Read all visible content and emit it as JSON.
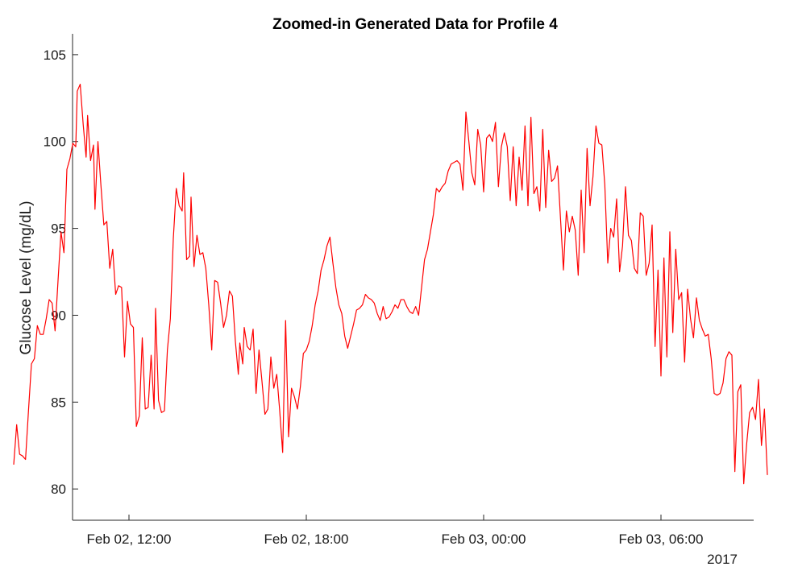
{
  "chart_data": {
    "type": "line",
    "title": "Zoomed-in Generated Data for Profile 4",
    "xlabel": "",
    "ylabel": "Glucose Level (mg/dL)",
    "x_axis": {
      "start_hour": 8.1,
      "end_hour": 31.1,
      "ticks": [
        {
          "hour": 12,
          "label": "Feb 02, 12:00"
        },
        {
          "hour": 18,
          "label": "Feb 02, 18:00"
        },
        {
          "hour": 24,
          "label": "Feb 03, 00:00"
        },
        {
          "hour": 30,
          "label": "Feb 03, 06:00"
        }
      ],
      "secondary_label": "2017"
    },
    "ylim": [
      78.2,
      106.2
    ],
    "y_ticks": [
      80,
      85,
      90,
      95,
      100,
      105
    ],
    "grid": false,
    "legend": "none",
    "line_color": "#ff0000",
    "series": [
      {
        "values": [
          [
            8.1,
            81.4
          ],
          [
            8.2,
            83.7
          ],
          [
            8.3,
            82.0
          ],
          [
            8.4,
            81.9
          ],
          [
            8.5,
            81.7
          ],
          [
            8.6,
            84.5
          ],
          [
            8.7,
            87.2
          ],
          [
            8.8,
            87.5
          ],
          [
            8.9,
            89.4
          ],
          [
            9.0,
            88.9
          ],
          [
            9.1,
            88.9
          ],
          [
            9.2,
            89.8
          ],
          [
            9.3,
            90.9
          ],
          [
            9.4,
            90.7
          ],
          [
            9.5,
            89.1
          ],
          [
            9.6,
            92.0
          ],
          [
            9.7,
            94.8
          ],
          [
            9.8,
            93.6
          ],
          [
            9.9,
            98.4
          ],
          [
            10.0,
            99.0
          ],
          [
            10.1,
            99.9
          ],
          [
            10.2,
            99.7
          ],
          [
            10.25,
            102.9
          ],
          [
            10.35,
            103.3
          ],
          [
            10.45,
            101.0
          ],
          [
            10.55,
            99.1
          ],
          [
            10.6,
            101.5
          ],
          [
            10.7,
            98.9
          ],
          [
            10.8,
            99.8
          ],
          [
            10.85,
            96.1
          ],
          [
            10.95,
            100.0
          ],
          [
            11.05,
            97.5
          ],
          [
            11.15,
            95.2
          ],
          [
            11.25,
            95.4
          ],
          [
            11.35,
            92.7
          ],
          [
            11.45,
            93.8
          ],
          [
            11.55,
            91.2
          ],
          [
            11.65,
            91.7
          ],
          [
            11.75,
            91.6
          ],
          [
            11.85,
            87.6
          ],
          [
            11.95,
            90.8
          ],
          [
            12.05,
            89.5
          ],
          [
            12.15,
            89.3
          ],
          [
            12.25,
            83.6
          ],
          [
            12.35,
            84.2
          ],
          [
            12.45,
            88.7
          ],
          [
            12.55,
            84.6
          ],
          [
            12.65,
            84.7
          ],
          [
            12.75,
            87.7
          ],
          [
            12.85,
            84.6
          ],
          [
            12.9,
            90.4
          ],
          [
            13.0,
            85.1
          ],
          [
            13.1,
            84.4
          ],
          [
            13.2,
            84.5
          ],
          [
            13.3,
            88.0
          ],
          [
            13.4,
            89.8
          ],
          [
            13.5,
            94.4
          ],
          [
            13.6,
            97.3
          ],
          [
            13.7,
            96.3
          ],
          [
            13.8,
            96.0
          ],
          [
            13.85,
            98.2
          ],
          [
            13.95,
            93.2
          ],
          [
            14.05,
            93.4
          ],
          [
            14.1,
            96.8
          ],
          [
            14.2,
            92.8
          ],
          [
            14.3,
            94.6
          ],
          [
            14.4,
            93.5
          ],
          [
            14.5,
            93.6
          ],
          [
            14.6,
            92.7
          ],
          [
            14.7,
            90.6
          ],
          [
            14.8,
            88.0
          ],
          [
            14.9,
            92.0
          ],
          [
            15.0,
            91.9
          ],
          [
            15.1,
            90.7
          ],
          [
            15.2,
            89.3
          ],
          [
            15.3,
            90.0
          ],
          [
            15.4,
            91.4
          ],
          [
            15.5,
            91.1
          ],
          [
            15.6,
            88.5
          ],
          [
            15.7,
            86.6
          ],
          [
            15.75,
            88.4
          ],
          [
            15.85,
            87.2
          ],
          [
            15.9,
            89.3
          ],
          [
            16.0,
            88.2
          ],
          [
            16.1,
            88.0
          ],
          [
            16.2,
            89.2
          ],
          [
            16.3,
            85.5
          ],
          [
            16.4,
            88.0
          ],
          [
            16.5,
            86.2
          ],
          [
            16.6,
            84.3
          ],
          [
            16.7,
            84.6
          ],
          [
            16.8,
            87.6
          ],
          [
            16.9,
            85.8
          ],
          [
            17.0,
            86.6
          ],
          [
            17.1,
            84.5
          ],
          [
            17.2,
            82.1
          ],
          [
            17.3,
            89.7
          ],
          [
            17.4,
            83.0
          ],
          [
            17.5,
            85.8
          ],
          [
            17.6,
            85.3
          ],
          [
            17.7,
            84.6
          ],
          [
            17.8,
            85.9
          ],
          [
            17.9,
            87.8
          ],
          [
            18.0,
            88.0
          ],
          [
            18.1,
            88.5
          ],
          [
            18.2,
            89.4
          ],
          [
            18.3,
            90.6
          ],
          [
            18.4,
            91.4
          ],
          [
            18.5,
            92.6
          ],
          [
            18.6,
            93.2
          ],
          [
            18.7,
            94.0
          ],
          [
            18.8,
            94.5
          ],
          [
            18.9,
            93.0
          ],
          [
            19.0,
            91.6
          ],
          [
            19.1,
            90.6
          ],
          [
            19.2,
            90.1
          ],
          [
            19.3,
            88.8
          ],
          [
            19.4,
            88.1
          ],
          [
            19.5,
            88.8
          ],
          [
            19.6,
            89.5
          ],
          [
            19.7,
            90.3
          ],
          [
            19.8,
            90.4
          ],
          [
            19.9,
            90.6
          ],
          [
            20.0,
            91.2
          ],
          [
            20.1,
            91.0
          ],
          [
            20.2,
            90.9
          ],
          [
            20.3,
            90.7
          ],
          [
            20.4,
            90.1
          ],
          [
            20.5,
            89.7
          ],
          [
            20.6,
            90.5
          ],
          [
            20.7,
            89.8
          ],
          [
            20.8,
            89.9
          ],
          [
            20.9,
            90.2
          ],
          [
            21.0,
            90.6
          ],
          [
            21.1,
            90.4
          ],
          [
            21.2,
            90.9
          ],
          [
            21.3,
            90.9
          ],
          [
            21.4,
            90.5
          ],
          [
            21.5,
            90.2
          ],
          [
            21.6,
            90.1
          ],
          [
            21.7,
            90.5
          ],
          [
            21.8,
            90.0
          ],
          [
            21.9,
            91.6
          ],
          [
            22.0,
            93.2
          ],
          [
            22.1,
            93.8
          ],
          [
            22.2,
            94.8
          ],
          [
            22.3,
            95.8
          ],
          [
            22.4,
            97.3
          ],
          [
            22.5,
            97.1
          ],
          [
            22.6,
            97.4
          ],
          [
            22.7,
            97.6
          ],
          [
            22.8,
            98.3
          ],
          [
            22.9,
            98.7
          ],
          [
            23.0,
            98.8
          ],
          [
            23.1,
            98.9
          ],
          [
            23.2,
            98.7
          ],
          [
            23.3,
            97.2
          ],
          [
            23.4,
            101.7
          ],
          [
            23.5,
            100.0
          ],
          [
            23.6,
            98.2
          ],
          [
            23.7,
            97.5
          ],
          [
            23.8,
            100.7
          ],
          [
            23.9,
            99.8
          ],
          [
            24.0,
            97.1
          ],
          [
            24.1,
            100.2
          ],
          [
            24.2,
            100.4
          ],
          [
            24.3,
            100.0
          ],
          [
            24.4,
            101.1
          ],
          [
            24.5,
            97.4
          ],
          [
            24.6,
            99.7
          ],
          [
            24.7,
            100.5
          ],
          [
            24.8,
            99.7
          ],
          [
            24.9,
            96.6
          ],
          [
            25.0,
            99.7
          ],
          [
            25.1,
            96.3
          ],
          [
            25.2,
            99.1
          ],
          [
            25.3,
            97.2
          ],
          [
            25.4,
            100.9
          ],
          [
            25.5,
            96.3
          ],
          [
            25.6,
            101.4
          ],
          [
            25.7,
            97.0
          ],
          [
            25.8,
            97.4
          ],
          [
            25.9,
            96.0
          ],
          [
            26.0,
            100.7
          ],
          [
            26.1,
            96.2
          ],
          [
            26.2,
            99.5
          ],
          [
            26.3,
            97.7
          ],
          [
            26.4,
            97.9
          ],
          [
            26.5,
            98.6
          ],
          [
            26.6,
            95.6
          ],
          [
            26.7,
            92.6
          ],
          [
            26.8,
            96.0
          ],
          [
            26.9,
            94.8
          ],
          [
            27.0,
            95.7
          ],
          [
            27.1,
            94.9
          ],
          [
            27.2,
            92.3
          ],
          [
            27.3,
            97.2
          ],
          [
            27.4,
            93.6
          ],
          [
            27.5,
            99.6
          ],
          [
            27.6,
            96.3
          ],
          [
            27.7,
            98.0
          ],
          [
            27.8,
            100.9
          ],
          [
            27.9,
            99.9
          ],
          [
            28.0,
            99.8
          ],
          [
            28.1,
            97.5
          ],
          [
            28.2,
            93.0
          ],
          [
            28.3,
            95.0
          ],
          [
            28.4,
            94.5
          ],
          [
            28.5,
            96.7
          ],
          [
            28.6,
            92.5
          ],
          [
            28.7,
            94.0
          ],
          [
            28.8,
            97.4
          ],
          [
            28.9,
            94.6
          ],
          [
            29.0,
            94.3
          ],
          [
            29.1,
            92.7
          ],
          [
            29.2,
            92.4
          ],
          [
            29.3,
            95.9
          ],
          [
            29.4,
            95.7
          ],
          [
            29.5,
            92.3
          ],
          [
            29.6,
            93.0
          ],
          [
            29.7,
            95.2
          ],
          [
            29.8,
            88.2
          ],
          [
            29.9,
            92.6
          ],
          [
            30.0,
            86.5
          ],
          [
            30.1,
            93.3
          ],
          [
            30.2,
            87.6
          ],
          [
            30.3,
            94.8
          ],
          [
            30.4,
            89.0
          ],
          [
            30.5,
            93.8
          ],
          [
            30.6,
            90.9
          ],
          [
            30.7,
            91.3
          ],
          [
            30.8,
            87.3
          ],
          [
            30.9,
            91.5
          ],
          [
            31.0,
            89.8
          ],
          [
            31.1,
            88.7
          ],
          [
            31.2,
            91.0
          ],
          [
            31.3,
            89.7
          ],
          [
            31.4,
            89.2
          ],
          [
            31.5,
            88.8
          ],
          [
            31.6,
            88.9
          ],
          [
            31.7,
            87.5
          ],
          [
            31.8,
            85.5
          ],
          [
            31.9,
            85.4
          ],
          [
            32.0,
            85.5
          ],
          [
            32.1,
            86.1
          ],
          [
            32.2,
            87.5
          ],
          [
            32.3,
            87.9
          ],
          [
            32.4,
            87.7
          ],
          [
            32.5,
            81.0
          ],
          [
            32.6,
            85.6
          ],
          [
            32.7,
            86.0
          ],
          [
            32.8,
            80.3
          ],
          [
            32.9,
            82.6
          ],
          [
            33.0,
            84.4
          ],
          [
            33.1,
            84.7
          ],
          [
            33.2,
            84.0
          ],
          [
            33.3,
            86.3
          ],
          [
            33.4,
            82.5
          ],
          [
            33.5,
            84.6
          ],
          [
            33.6,
            80.8
          ]
        ]
      }
    ]
  }
}
